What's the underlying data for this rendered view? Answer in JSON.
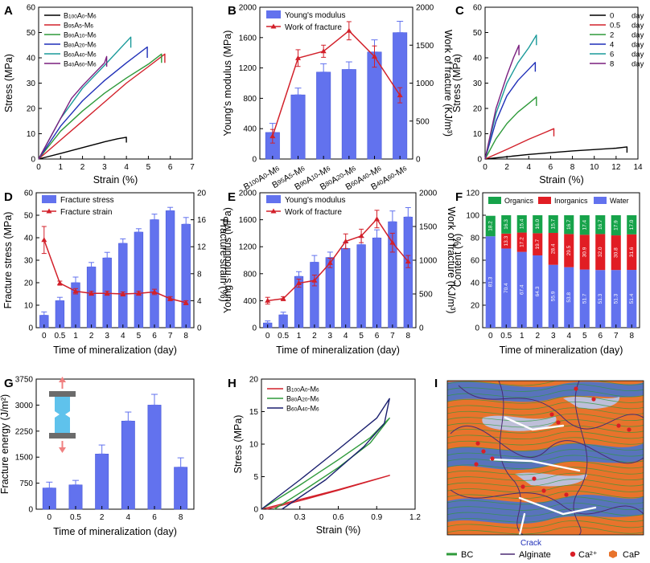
{
  "figure": {
    "colors": {
      "bar": "#6272ee",
      "bar_edge": "#4a5ad8",
      "line": "#d2202a",
      "organics": "#16a34a",
      "inorganics": "#e11d24",
      "water": "#6272ee",
      "bg_orange": "#e8732c",
      "bc_green": "#2e9a3a",
      "alginate_purple": "#4b2a73",
      "ca_red": "#d91e26",
      "cap_orange": "#e8732c",
      "crack_white": "#ffffff",
      "blue_region": "#3f73d6"
    },
    "panel_I": {
      "label": "I",
      "crack_label": "Crack",
      "legend": [
        {
          "label": "BC",
          "icon": "green-line-icon"
        },
        {
          "label": "Alginate",
          "icon": "purple-line-icon"
        },
        {
          "label": "Ca²⁺",
          "icon": "red-dot-icon"
        },
        {
          "label": "CaP",
          "icon": "orange-hexagon-icon"
        }
      ]
    }
  },
  "chart_data": [
    {
      "panel": "A",
      "type": "line",
      "xlabel": "Strain (%)",
      "ylabel": "Stress (MPa)",
      "xlim": [
        0,
        7
      ],
      "ylim": [
        0,
        60
      ],
      "xticks": [
        0,
        1,
        2,
        3,
        4,
        5,
        6,
        7
      ],
      "yticks": [
        0,
        10,
        20,
        30,
        40,
        50,
        60
      ],
      "legend_position": "top-left",
      "series": [
        {
          "name": "B100A0-M6",
          "color": "#000000",
          "x": [
            0,
            1,
            2,
            3,
            3.6,
            4.0,
            4.0
          ],
          "y": [
            0,
            2.2,
            4.5,
            6.8,
            8.0,
            8.6,
            6.5
          ]
        },
        {
          "name": "B95A5-M6",
          "color": "#d2202a",
          "x": [
            0,
            1,
            2,
            3,
            4,
            5,
            5.75,
            5.75
          ],
          "y": [
            0,
            7.5,
            15,
            22.5,
            30,
            36.5,
            41.5,
            38
          ]
        },
        {
          "name": "B90A10-M6",
          "color": "#2e9a3a",
          "x": [
            0,
            1,
            2,
            3,
            4,
            5,
            5.6,
            5.6
          ],
          "y": [
            0,
            11,
            19,
            26,
            32,
            37.5,
            41.5,
            38
          ]
        },
        {
          "name": "B80A20-M6",
          "color": "#1f2fb8",
          "x": [
            0,
            1,
            2,
            3,
            4,
            4.95,
            4.95
          ],
          "y": [
            0,
            13,
            23,
            31,
            38,
            44.3,
            40
          ]
        },
        {
          "name": "B60A40-M6",
          "color": "#1a9a9a",
          "x": [
            0,
            1,
            2,
            3,
            4.2,
            4.2
          ],
          "y": [
            0,
            16,
            28,
            37,
            48.2,
            44
          ]
        },
        {
          "name": "B40A60-M6",
          "color": "#7a1f7f",
          "x": [
            0,
            1,
            1.5,
            2,
            3,
            3.1,
            3.1
          ],
          "y": [
            0,
            16,
            24,
            29,
            38,
            40.5,
            36.5
          ]
        }
      ]
    },
    {
      "panel": "B",
      "type": "bar",
      "ylabel": "Young's modulus (MPa)",
      "y2label": "Work of fracture (KJ/m³)",
      "ylim": [
        0,
        2000
      ],
      "y2lim": [
        0,
        2000
      ],
      "yticks": [
        0,
        400,
        800,
        1200,
        1600,
        2000
      ],
      "y2ticks": [
        0,
        500,
        1000,
        1500,
        2000
      ],
      "categories": [
        "B100A0-M6",
        "B95A5-M6",
        "B90A10-M6",
        "B80A20-M6",
        "B60A40-M6",
        "B40A60-M6"
      ],
      "legend_position": "top-left",
      "series": [
        {
          "name": "Young's modulus",
          "kind": "bar",
          "values": [
            350,
            845,
            1145,
            1180,
            1410,
            1665
          ],
          "errors": [
            120,
            90,
            110,
            100,
            160,
            150
          ]
        },
        {
          "name": "Work of fracture",
          "kind": "line",
          "axis": "right",
          "values": [
            300,
            1330,
            1420,
            1690,
            1350,
            840
          ],
          "errors": [
            90,
            110,
            80,
            120,
            140,
            100
          ]
        }
      ]
    },
    {
      "panel": "C",
      "type": "line",
      "xlabel": "Strain (%)",
      "ylabel": "Stress (MPa)",
      "xlim": [
        0,
        14
      ],
      "ylim": [
        0,
        60
      ],
      "xticks": [
        0,
        2,
        4,
        6,
        8,
        10,
        12,
        14
      ],
      "yticks": [
        0,
        10,
        20,
        30,
        40,
        50,
        60
      ],
      "legend_position": "top-right",
      "legend_unit": "day",
      "series": [
        {
          "name": "0",
          "color": "#000000",
          "x": [
            0,
            4,
            8,
            12,
            13,
            13
          ],
          "y": [
            0,
            1.8,
            3.2,
            4.3,
            4.8,
            2.5
          ]
        },
        {
          "name": "0.5",
          "color": "#d2202a",
          "x": [
            0,
            2,
            4,
            5.5,
            6.3,
            6.3
          ],
          "y": [
            0,
            3.8,
            7.8,
            10.5,
            12,
            9
          ]
        },
        {
          "name": "2",
          "color": "#2e9a3a",
          "x": [
            0,
            1,
            2,
            3,
            4,
            4.7,
            4.7
          ],
          "y": [
            0,
            8,
            14,
            18.5,
            22,
            24.5,
            21
          ]
        },
        {
          "name": "4",
          "color": "#1f2fb8",
          "x": [
            0,
            1,
            2,
            3,
            4,
            4.6,
            4.6
          ],
          "y": [
            0,
            15,
            25,
            31,
            35.5,
            38.2,
            34.5
          ]
        },
        {
          "name": "6",
          "color": "#1a9a9a",
          "x": [
            0,
            1,
            2,
            3,
            4,
            4.7,
            4.7
          ],
          "y": [
            0,
            18,
            30,
            38,
            44,
            49,
            45
          ]
        },
        {
          "name": "8",
          "color": "#7a1f7f",
          "x": [
            0,
            1,
            2,
            2.6,
            3.1,
            3.1
          ],
          "y": [
            0,
            20,
            33,
            40,
            45,
            41
          ]
        }
      ]
    },
    {
      "panel": "D",
      "type": "bar",
      "xlabel": "Time of mineralization (day)",
      "ylabel": "Fracture stress (MPa)",
      "y2label": "Fracture strain (%)",
      "ylim": [
        0,
        60
      ],
      "y2lim": [
        0,
        20
      ],
      "yticks": [
        0,
        10,
        20,
        30,
        40,
        50,
        60
      ],
      "y2ticks": [
        0,
        4,
        8,
        12,
        16,
        20
      ],
      "categories": [
        "0",
        "0.5",
        "1",
        "2",
        "3",
        "4",
        "5",
        "6",
        "7",
        "8"
      ],
      "legend_position": "top-left",
      "series": [
        {
          "name": "Fracture stress",
          "kind": "bar",
          "values": [
            5.5,
            12,
            20,
            27,
            31,
            37.5,
            42.5,
            48,
            52,
            46
          ],
          "errors": [
            1.5,
            1.5,
            2.5,
            2,
            2.5,
            2,
            1.5,
            2.5,
            1.5,
            3
          ]
        },
        {
          "name": "Fracture strain",
          "kind": "line",
          "axis": "right",
          "values": [
            13,
            6.6,
            5.4,
            5.1,
            5.1,
            5.0,
            5.1,
            5.3,
            4.3,
            3.7
          ],
          "errors": [
            2,
            0.3,
            0.4,
            0.3,
            0.3,
            0.3,
            0.3,
            0.4,
            0.3,
            0.3
          ]
        }
      ]
    },
    {
      "panel": "E",
      "type": "bar",
      "xlabel": "Time of mineralization (day)",
      "ylabel": "Young's modulus (MPa)",
      "y2label": "Work of fracture (KJ/m³)",
      "ylim": [
        0,
        2000
      ],
      "y2lim": [
        0,
        2000
      ],
      "yticks": [
        0,
        400,
        800,
        1200,
        1600,
        2000
      ],
      "y2ticks": [
        0,
        500,
        1000,
        1500,
        2000
      ],
      "categories": [
        "0",
        "0.5",
        "1",
        "2",
        "3",
        "4",
        "5",
        "6",
        "7",
        "8"
      ],
      "legend_position": "top-left",
      "series": [
        {
          "name": "Young's modulus",
          "kind": "bar",
          "values": [
            70,
            190,
            760,
            970,
            1040,
            1175,
            1230,
            1330,
            1570,
            1640
          ],
          "errors": [
            30,
            40,
            70,
            100,
            80,
            90,
            110,
            120,
            160,
            140
          ]
        },
        {
          "name": "Work of fracture",
          "kind": "line",
          "axis": "right",
          "values": [
            400,
            430,
            660,
            700,
            960,
            1280,
            1360,
            1610,
            1260,
            980
          ],
          "errors": [
            50,
            30,
            60,
            80,
            70,
            110,
            100,
            130,
            140,
            90
          ]
        }
      ]
    },
    {
      "panel": "F",
      "type": "bar",
      "xlabel": "Time of mineralization (day)",
      "ylabel": "Content (%)",
      "ylim": [
        0,
        120
      ],
      "yticks": [
        0,
        20,
        40,
        60,
        80,
        100,
        120
      ],
      "categories": [
        "0",
        "0.5",
        "1",
        "2",
        "3",
        "4",
        "5",
        "6",
        "7",
        "8"
      ],
      "stacked": true,
      "legend_position": "top",
      "series": [
        {
          "name": "Water",
          "values": [
            81.3,
            70.4,
            67.4,
            64.3,
            55.9,
            53.8,
            51.7,
            51.3,
            51.3,
            51.4
          ]
        },
        {
          "name": "Inorganics",
          "values": [
            0,
            13.3,
            17.2,
            19.7,
            28.4,
            29.5,
            30.9,
            32.0,
            30.8,
            31.6
          ]
        },
        {
          "name": "Organics",
          "values": [
            18.2,
            16.3,
            15.4,
            16.0,
            15.7,
            16.7,
            17.4,
            16.7,
            17.9,
            17.0
          ]
        }
      ]
    },
    {
      "panel": "G",
      "type": "bar",
      "xlabel": "Time of mineralization (day)",
      "ylabel": "Fracture energy (J/m²)",
      "ylim": [
        0,
        3750
      ],
      "yticks": [
        0,
        750,
        1500,
        2250,
        3000,
        3750
      ],
      "categories": [
        "0",
        "0.5",
        "2",
        "4",
        "6",
        "8"
      ],
      "series": [
        {
          "name": "Fracture energy",
          "values": [
            610,
            700,
            1590,
            2540,
            3000,
            1210
          ],
          "errors": [
            170,
            130,
            260,
            260,
            310,
            270
          ]
        }
      ]
    },
    {
      "panel": "H",
      "type": "line",
      "xlabel": "Strain (%)",
      "ylabel": "Stress (MPa)",
      "xlim": [
        0,
        1.2
      ],
      "ylim": [
        0,
        20
      ],
      "xticks": [
        0,
        0.3,
        0.6,
        0.9,
        1.2
      ],
      "yticks": [
        0,
        5,
        10,
        15,
        20
      ],
      "legend_position": "top-left",
      "series": [
        {
          "name": "B100A0-M6",
          "color": "#d2202a",
          "loading_x": [
            0,
            0.3,
            0.6,
            1.0
          ],
          "loading_y": [
            0,
            1.5,
            3.0,
            5.2
          ],
          "unloading_x": [
            1.0,
            0.6,
            0.3,
            0.04
          ],
          "unloading_y": [
            5.2,
            2.9,
            1.3,
            0
          ]
        },
        {
          "name": "B80A20-M6",
          "color": "#2e9a3a",
          "loading_x": [
            0,
            0.3,
            0.6,
            0.85,
            1.0
          ],
          "loading_y": [
            0,
            3.7,
            7.6,
            11.0,
            14.0
          ],
          "unloading_x": [
            1.0,
            0.85,
            0.6,
            0.3,
            0.1
          ],
          "unloading_y": [
            14.0,
            10.2,
            6.4,
            2.5,
            0
          ]
        },
        {
          "name": "B60A40-M6",
          "color": "#1a1f6e",
          "loading_x": [
            0,
            0.3,
            0.6,
            0.9,
            1.0
          ],
          "loading_y": [
            0,
            4.5,
            9.2,
            14.0,
            17.0
          ],
          "unloading_x": [
            1.0,
            0.96,
            0.8,
            0.5,
            0.16
          ],
          "unloading_y": [
            17.0,
            13.2,
            9.6,
            4.5,
            0
          ]
        }
      ]
    }
  ]
}
